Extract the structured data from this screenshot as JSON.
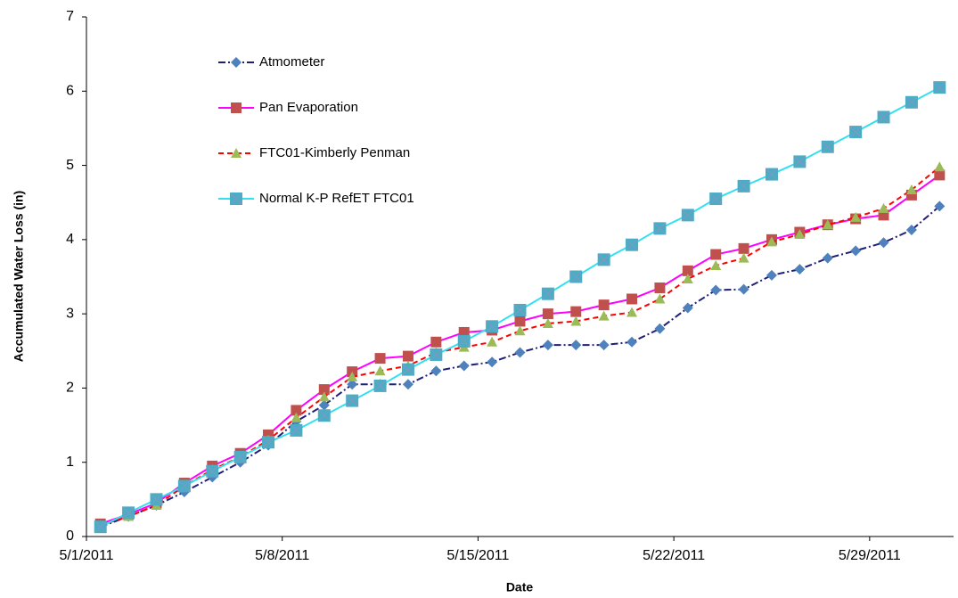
{
  "chart_data": {
    "type": "line",
    "x_label": "Date",
    "y_label": "Accumulated Water Loss (in)",
    "categories": [
      "5/1/2011",
      null,
      null,
      null,
      null,
      null,
      null,
      "5/8/2011",
      null,
      null,
      null,
      null,
      null,
      null,
      "5/15/2011",
      null,
      null,
      null,
      null,
      null,
      null,
      "5/22/2011",
      null,
      null,
      null,
      null,
      null,
      null,
      "5/29/2011",
      null,
      null
    ],
    "ylim": [
      0,
      7
    ],
    "yticks": [
      0,
      1,
      2,
      3,
      4,
      5,
      6,
      7
    ],
    "grid": false,
    "legend": "upper left",
    "series": [
      {
        "name": "Atmometer",
        "color": "#1f1f7a",
        "marker_color": "#4f81bd",
        "marker": "diamond",
        "dash": "dashdot",
        "values": [
          0.13,
          0.27,
          0.42,
          0.6,
          0.8,
          1.0,
          1.23,
          1.55,
          1.77,
          2.05,
          2.05,
          2.05,
          2.23,
          2.3,
          2.35,
          2.48,
          2.58,
          2.58,
          2.58,
          2.62,
          2.8,
          3.08,
          3.32,
          3.33,
          3.52,
          3.6,
          3.75,
          3.85,
          3.96,
          4.13,
          4.45
        ]
      },
      {
        "name": "Pan Evaporation",
        "color": "#ff00ff",
        "marker_color": "#c0504d",
        "marker": "square",
        "dash": "solid",
        "values": [
          0.17,
          0.3,
          0.45,
          0.72,
          0.95,
          1.12,
          1.37,
          1.7,
          1.98,
          2.22,
          2.4,
          2.43,
          2.62,
          2.75,
          2.78,
          2.9,
          3.0,
          3.03,
          3.12,
          3.2,
          3.35,
          3.58,
          3.8,
          3.88,
          4.0,
          4.1,
          4.2,
          4.28,
          4.33,
          4.6,
          4.87
        ]
      },
      {
        "name": "FTC01-Kimberly Penman",
        "color": "#ff0000",
        "marker_color": "#9bbb59",
        "marker": "triangle",
        "dash": "dashed",
        "values": [
          0.15,
          0.27,
          0.42,
          0.68,
          0.9,
          1.07,
          1.3,
          1.6,
          1.88,
          2.15,
          2.23,
          2.3,
          2.48,
          2.55,
          2.62,
          2.77,
          2.87,
          2.9,
          2.97,
          3.02,
          3.2,
          3.47,
          3.65,
          3.75,
          3.97,
          4.07,
          4.2,
          4.3,
          4.42,
          4.67,
          4.98
        ]
      },
      {
        "name": "Normal K-P RefET FTC01",
        "color": "#33e0f0",
        "marker_color": "#4bacc6",
        "marker": "xsquare",
        "dash": "solid",
        "values": [
          0.13,
          0.32,
          0.5,
          0.68,
          0.88,
          1.07,
          1.27,
          1.43,
          1.63,
          1.83,
          2.03,
          2.25,
          2.45,
          2.63,
          2.83,
          3.05,
          3.27,
          3.5,
          3.73,
          3.93,
          4.15,
          4.33,
          4.55,
          4.72,
          4.88,
          5.05,
          5.25,
          5.45,
          5.65,
          5.85,
          6.05
        ]
      }
    ]
  }
}
